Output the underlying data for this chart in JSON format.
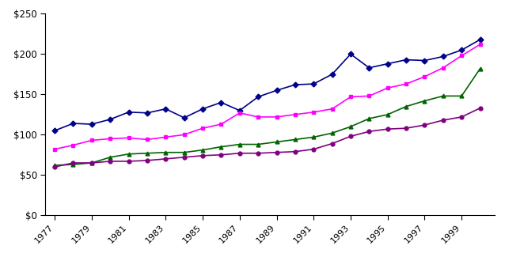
{
  "years": [
    1977,
    1978,
    1979,
    1980,
    1981,
    1982,
    1983,
    1984,
    1985,
    1986,
    1987,
    1988,
    1989,
    1990,
    1991,
    1992,
    1993,
    1994,
    1995,
    1996,
    1997,
    1998,
    1999,
    2000
  ],
  "quartile1": [
    105,
    114,
    113,
    119,
    128,
    127,
    132,
    121,
    132,
    140,
    130,
    147,
    155,
    162,
    163,
    175,
    200,
    183,
    188,
    193,
    192,
    197,
    205,
    218
  ],
  "quartile2": [
    82,
    87,
    93,
    95,
    96,
    94,
    97,
    100,
    108,
    113,
    127,
    122,
    122,
    125,
    128,
    132,
    147,
    148,
    158,
    163,
    172,
    183,
    198,
    212
  ],
  "quartile3": [
    62,
    63,
    65,
    72,
    76,
    77,
    78,
    78,
    81,
    85,
    88,
    88,
    91,
    94,
    97,
    102,
    110,
    120,
    125,
    135,
    142,
    148,
    148,
    182
  ],
  "quartile4": [
    60,
    65,
    65,
    67,
    67,
    68,
    70,
    72,
    74,
    75,
    77,
    77,
    78,
    79,
    82,
    89,
    98,
    104,
    107,
    108,
    112,
    118,
    122,
    133
  ],
  "colors": {
    "quartile1": "#00008B",
    "quartile2": "#FF00FF",
    "quartile3": "#006400",
    "quartile4": "#800080"
  },
  "yticks": [
    0,
    50,
    100,
    150,
    200,
    250
  ],
  "ytick_labels": [
    "$0",
    "$50",
    "$100",
    "$150",
    "$200",
    "$250"
  ],
  "ylim": [
    0,
    250
  ],
  "xlim_min": 1976.5,
  "xlim_max": 2000.8,
  "xtick_labels": [
    "1977",
    "1979",
    "1981",
    "1983",
    "1985",
    "1987",
    "1989",
    "1991",
    "1993",
    "1995",
    "1997",
    "1999"
  ],
  "xticks": [
    1977,
    1979,
    1981,
    1983,
    1985,
    1987,
    1989,
    1991,
    1993,
    1995,
    1997,
    1999
  ],
  "background_color": "#FFFFFF"
}
